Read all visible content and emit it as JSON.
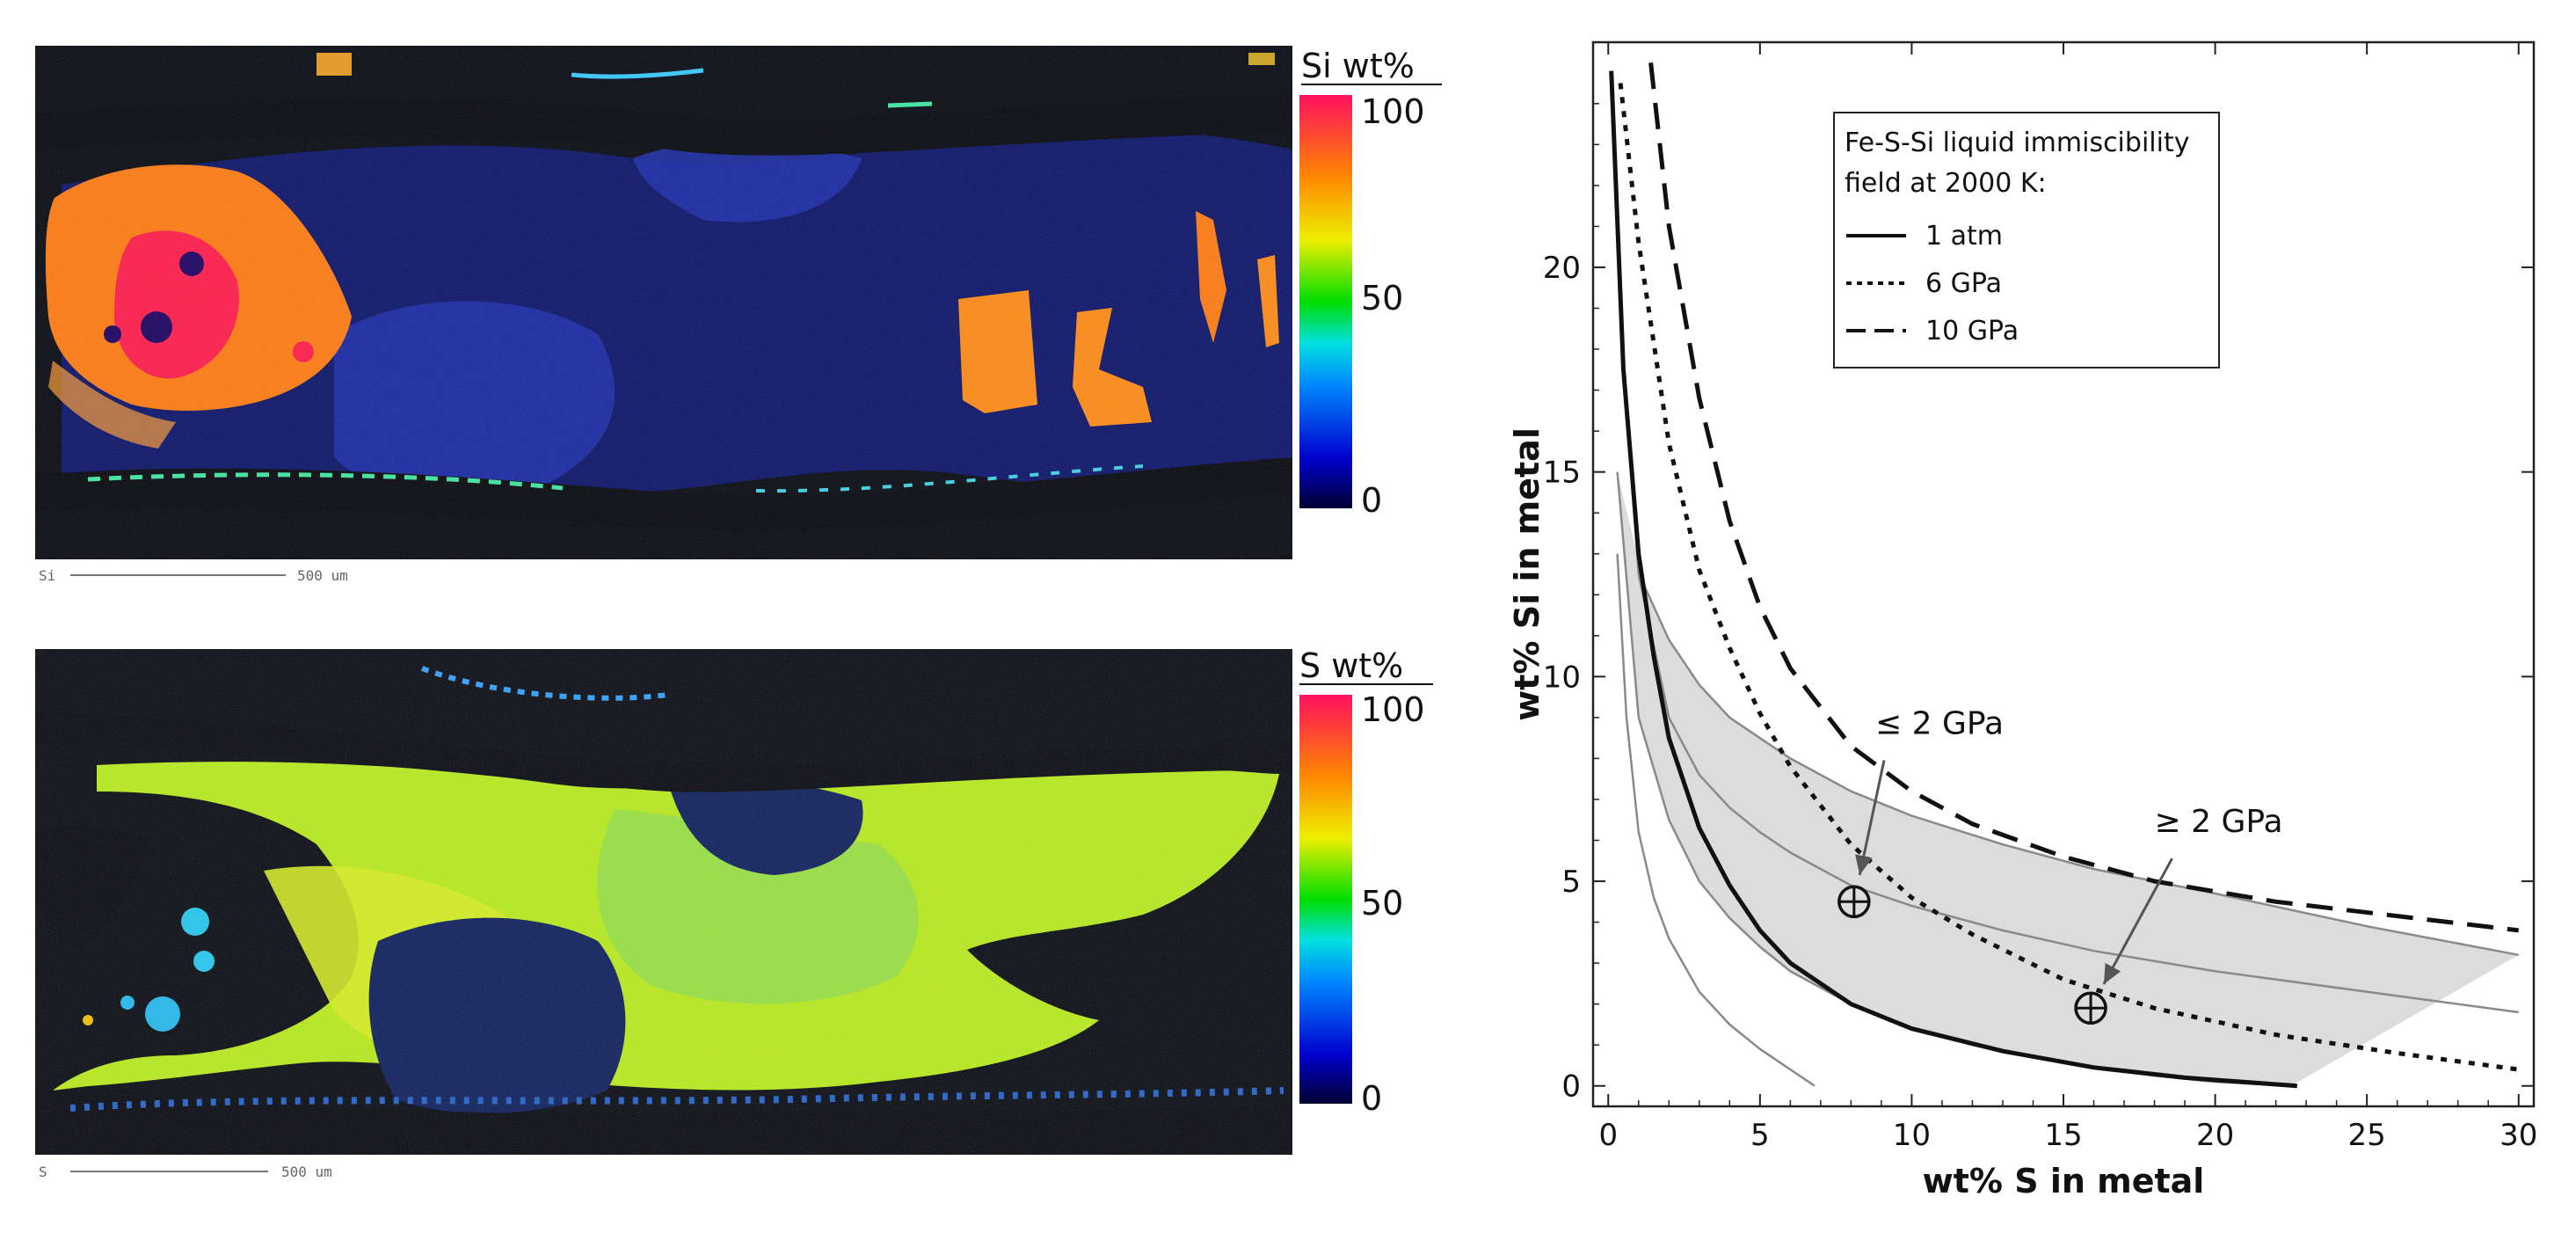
{
  "maps": [
    {
      "element": "Si",
      "colorbar_title": "Si wt%",
      "colorbar_ticks": [
        "100",
        "50",
        "0"
      ],
      "scale_label": "Si",
      "scale_value": "500 um"
    },
    {
      "element": "S",
      "colorbar_title": "S wt%",
      "colorbar_ticks": [
        "100",
        "50",
        "0"
      ],
      "scale_label": "S",
      "scale_value": "500 um"
    }
  ],
  "colors": {
    "background_map": "#05070f",
    "shade_band": "#dcdcdc",
    "curve_black": "#111111",
    "curve_gray": "#8a8a8a",
    "arrow": "#555555"
  },
  "chart_data": {
    "type": "line",
    "xlabel": "wt% S in metal",
    "ylabel": "wt% Si in metal",
    "xlim": [
      -0.5,
      30.5
    ],
    "ylim": [
      -0.5,
      25.5
    ],
    "xticks": [
      0,
      5,
      10,
      15,
      20,
      25,
      30
    ],
    "yticks": [
      0,
      5,
      10,
      15,
      20
    ],
    "legend_title_lines": [
      "Fe-S-Si liquid immiscibility",
      "field at 2000 K:"
    ],
    "legend_position": "top-right",
    "series": [
      {
        "name": "1 atm",
        "style": "solid",
        "x": [
          0.1,
          0.5,
          1,
          1.5,
          2,
          3,
          4,
          5,
          6,
          8,
          10,
          13,
          16,
          19,
          22.7
        ],
        "y": [
          24.8,
          17.5,
          13.0,
          10.5,
          8.5,
          6.3,
          4.9,
          3.8,
          3.0,
          2.0,
          1.4,
          0.85,
          0.45,
          0.2,
          0.0
        ]
      },
      {
        "name": "6 GPa",
        "style": "dotted",
        "x": [
          0.4,
          1,
          2,
          3,
          4,
          5,
          6,
          8,
          10,
          12,
          15,
          18,
          22,
          26,
          30
        ],
        "y": [
          24.5,
          20.6,
          15.7,
          12.6,
          10.7,
          9.1,
          7.8,
          5.9,
          4.6,
          3.7,
          2.6,
          1.9,
          1.25,
          0.8,
          0.4
        ]
      },
      {
        "name": "10 GPa",
        "style": "dashed",
        "x": [
          1.4,
          2,
          3,
          4,
          5,
          6,
          8,
          10,
          12,
          15,
          18,
          22,
          26,
          30
        ],
        "y": [
          25.0,
          21.0,
          16.8,
          13.8,
          11.7,
          10.2,
          8.3,
          7.2,
          6.4,
          5.6,
          5.0,
          4.5,
          4.15,
          3.8
        ]
      }
    ],
    "band": {
      "upper": {
        "x": [
          1.2,
          2,
          3,
          4,
          5,
          6,
          8,
          10,
          13,
          16,
          20,
          25,
          30
        ],
        "y": [
          12.2,
          10.9,
          9.8,
          9.0,
          8.5,
          8.0,
          7.2,
          6.6,
          5.9,
          5.3,
          4.7,
          3.9,
          3.2
        ]
      },
      "lower": {
        "x": [
          0.3,
          1,
          2,
          3,
          4,
          5,
          6,
          8,
          10,
          12,
          14,
          16,
          18,
          20,
          22.5
        ],
        "y": [
          15.0,
          9.0,
          6.5,
          5.0,
          4.1,
          3.4,
          2.8,
          2.0,
          1.4,
          1.0,
          0.7,
          0.45,
          0.25,
          0.1,
          0.0
        ]
      },
      "center": {
        "x": [
          0.5,
          1,
          2,
          3,
          4,
          5,
          6,
          8,
          10,
          13,
          16,
          20,
          25,
          30
        ],
        "y": [
          17.5,
          12.5,
          9.0,
          7.6,
          6.8,
          6.2,
          5.7,
          4.9,
          4.4,
          3.8,
          3.3,
          2.8,
          2.3,
          1.8
        ]
      }
    },
    "gray_outer": {
      "x": [
        0.3,
        0.6,
        1,
        1.5,
        2,
        3,
        4,
        5,
        6,
        6.8
      ],
      "y": [
        13.0,
        9.0,
        6.2,
        4.6,
        3.6,
        2.3,
        1.5,
        0.9,
        0.4,
        0.0
      ]
    },
    "points": [
      {
        "x": 8.1,
        "y": 4.5,
        "label": "≤ 2 GPa",
        "label_x": 8.8,
        "label_y": 8.6
      },
      {
        "x": 15.9,
        "y": 1.9,
        "label": "≥ 2 GPa",
        "label_x": 18.0,
        "label_y": 6.2
      }
    ]
  }
}
